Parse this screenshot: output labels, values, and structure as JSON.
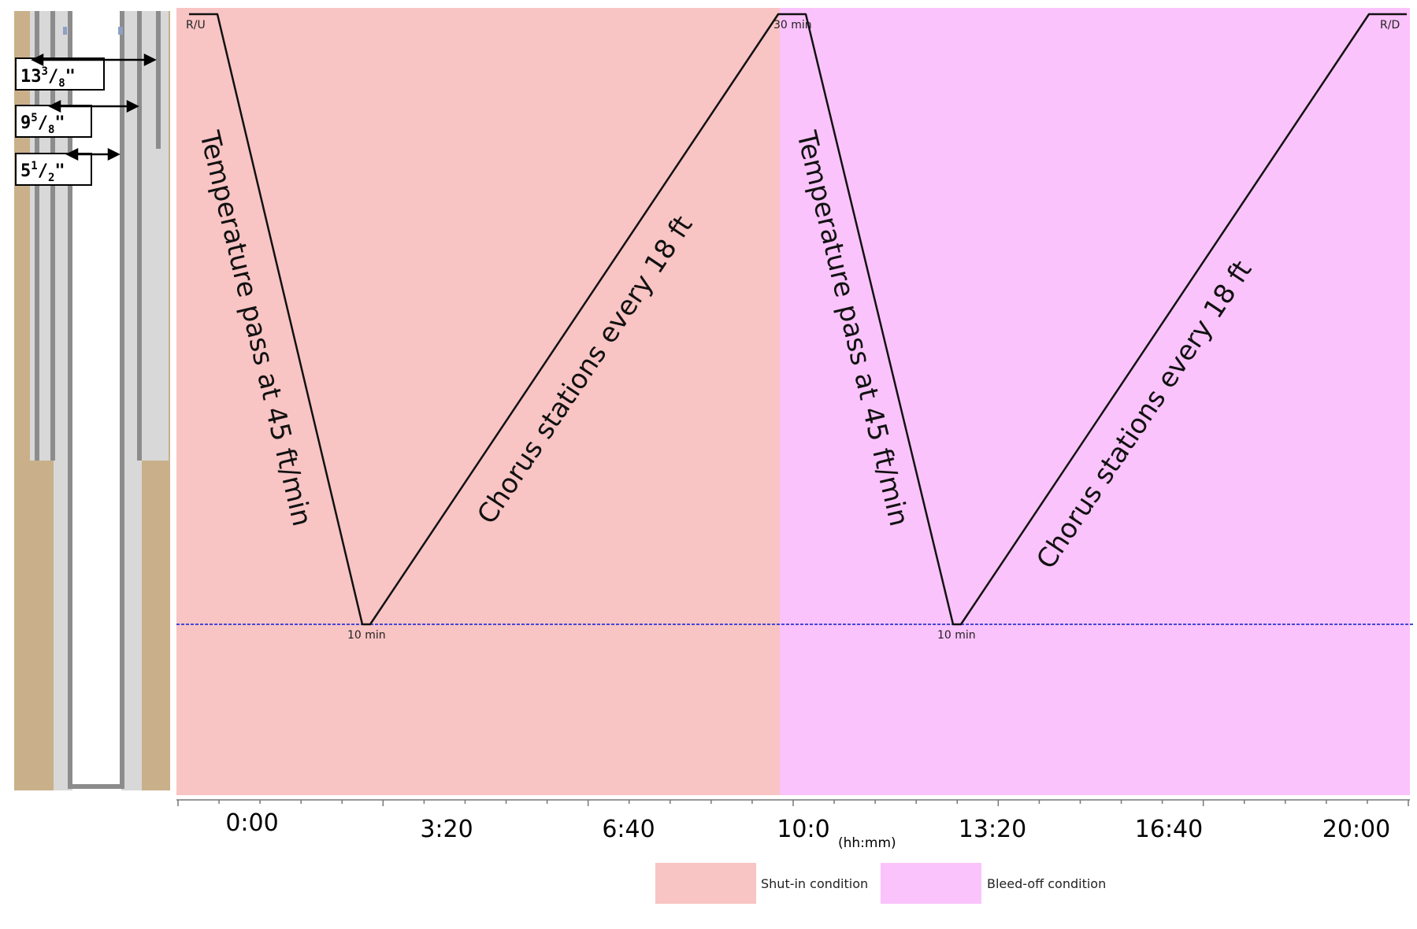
{
  "casing_labels": {
    "casing_1": {
      "whole": "13",
      "num": "3",
      "den": "8",
      "unit": "\""
    },
    "casing_2": {
      "whole": "9",
      "num": "5",
      "den": "8",
      "unit": "\""
    },
    "casing_3": {
      "whole": "5",
      "num": "1",
      "den": "2",
      "unit": "\""
    }
  },
  "markers": {
    "start": "R/U",
    "end": "R/D",
    "top_mid": "30 min",
    "bottom_first": "10 min",
    "bottom_second": "10 min"
  },
  "annotations": {
    "descent_first": "Temperature pass at 45 ft/min",
    "ascent_first": "Chorus stations every 18 ft",
    "descent_second": "Temperature pass at 45 ft/min",
    "ascent_second": "Chorus stations every 18 ft"
  },
  "axis": {
    "ticks": [
      "0:00",
      "3:20",
      "6:40",
      "10:0",
      "13:20",
      "16:40",
      "20:00"
    ],
    "unit": "(hh:mm)"
  },
  "legend": [
    {
      "label": "Shut-in condition",
      "color": "#f9c4c4"
    },
    {
      "label": "Bleed-off condition",
      "color": "#fbc3fb"
    }
  ],
  "colors": {
    "shut_in": "#f9c4c4",
    "bleed_off": "#fbc3fb",
    "formation": "#c9b08a",
    "cement": "#d6d6d6",
    "steel": "#8c8c8c",
    "depth_line": "#4646d6"
  }
}
